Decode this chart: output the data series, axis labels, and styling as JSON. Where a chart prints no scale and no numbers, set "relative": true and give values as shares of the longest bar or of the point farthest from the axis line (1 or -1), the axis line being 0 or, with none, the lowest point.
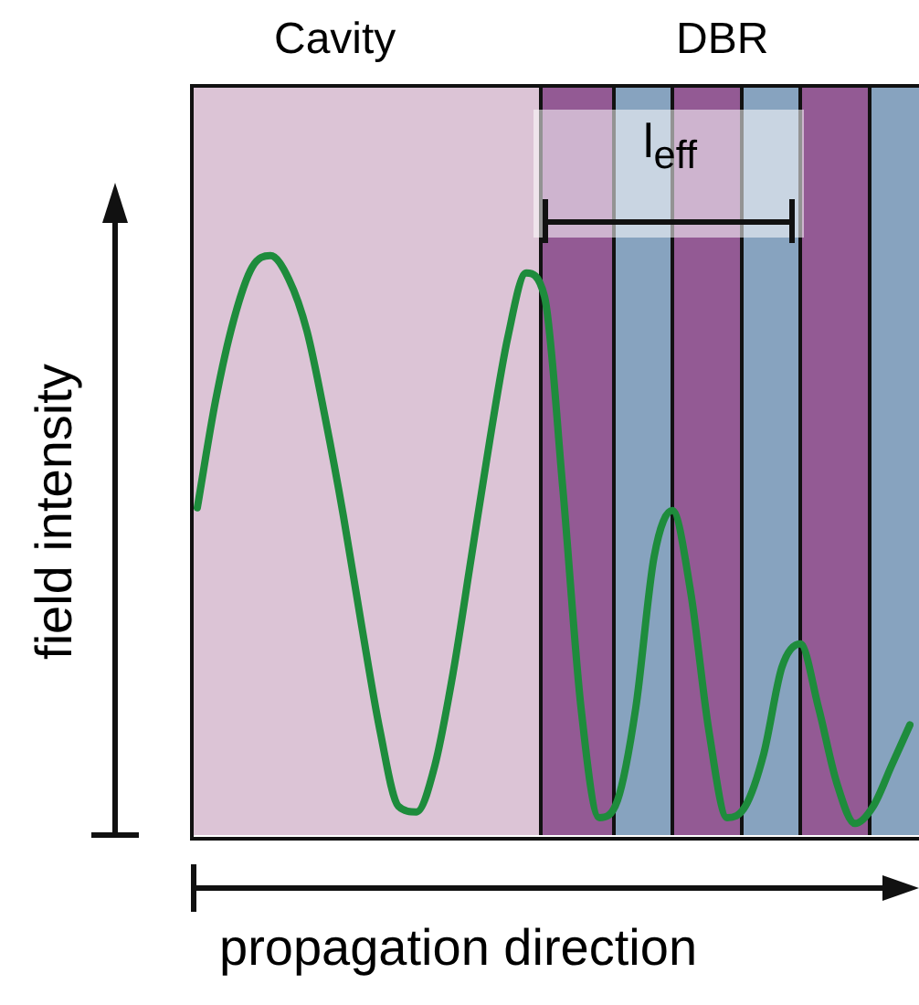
{
  "chart_data": {
    "type": "line",
    "relative": true,
    "marker": "none",
    "xlabel": "propagation direction",
    "ylabel": "field intensity",
    "annotations": [
      "Cavity",
      "DBR",
      "l$_{eff}$"
    ],
    "categories": [
      null,
      null,
      null,
      null,
      null,
      null,
      null,
      null,
      null,
      null,
      null,
      null,
      null,
      null,
      null,
      null,
      null,
      null,
      null,
      null,
      null,
      null,
      null,
      null,
      null,
      null,
      null,
      null,
      null,
      null,
      null,
      null,
      null,
      null,
      null,
      null,
      null,
      null,
      null,
      null
    ],
    "color": "#1e8c3c",
    "values": [
      0.565,
      0.75,
      0.89,
      0.98,
      1.0,
      0.96,
      0.87,
      0.72,
      0.55,
      0.36,
      0.18,
      0.05,
      0.04,
      0.12,
      0.28,
      0.48,
      0.68,
      0.86,
      0.97,
      0.93,
      0.6,
      0.22,
      0.03,
      0.06,
      0.22,
      0.48,
      0.56,
      0.42,
      0.18,
      0.03,
      0.05,
      0.14,
      0.29,
      0.33,
      0.22,
      0.09,
      0.02,
      0.05,
      0.12,
      0.19
    ]
  }
}
